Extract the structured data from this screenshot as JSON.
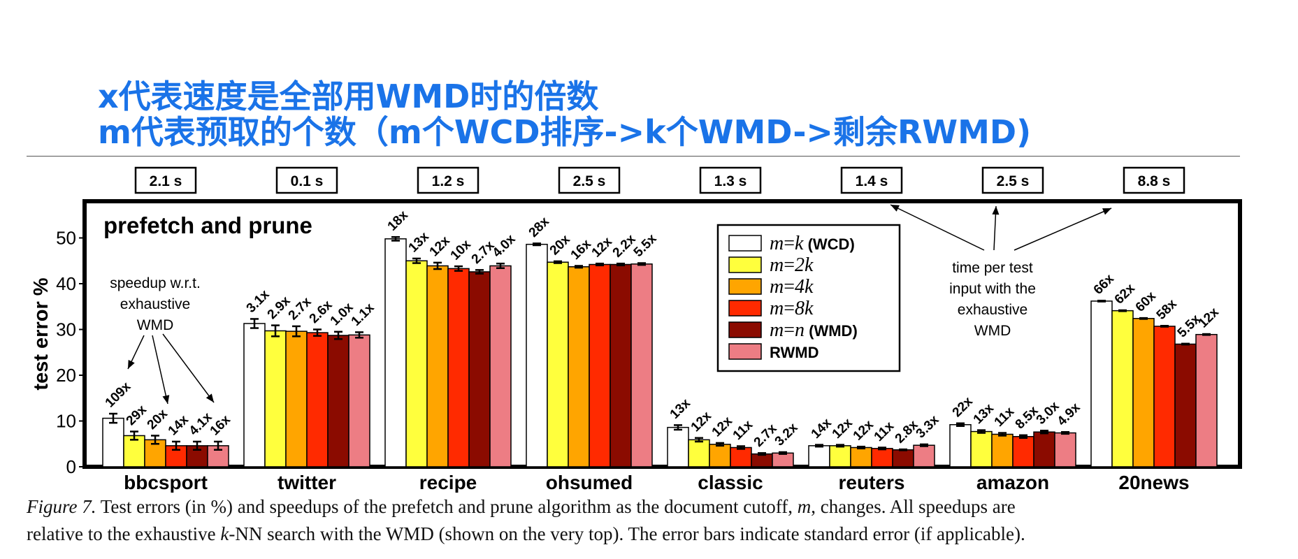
{
  "heading": {
    "line1": "x代表速度是全部用WMD时的倍数",
    "line2": "m代表预取的个数（m个WCD排序->k个WMD->剩余RWMD)"
  },
  "caption": {
    "fig_label": "Figure 7.",
    "line1_a": " Test errors (in %) and speedups of the prefetch and prune algorithm as the document cutoff, ",
    "m": "m",
    "line1_b": ", changes.  All speedups are",
    "line2_a": "relative to the exhaustive ",
    "k": "k",
    "line2_b": "-NN search with the WMD (shown on the very top). The error bars indicate standard error (if applicable)."
  },
  "chart_data": {
    "type": "bar",
    "title": "prefetch and prune",
    "ylabel": "test error %",
    "ylim": [
      0,
      55
    ],
    "yticks": [
      0,
      10,
      20,
      30,
      40,
      50
    ],
    "categories": [
      "bbcsport",
      "twitter",
      "recipe",
      "ohsumed",
      "classic",
      "reuters",
      "amazon",
      "20news"
    ],
    "wmd_times": [
      "2.1 s",
      "0.1 s",
      "1.2 s",
      "2.5 s",
      "1.3 s",
      "1.4 s",
      "2.5 s",
      "8.8 s"
    ],
    "series": [
      {
        "name": "m=k (WCD)",
        "color": "#ffffff",
        "values": [
          10.6,
          31.3,
          49.8,
          48.6,
          8.6,
          4.6,
          9.2,
          36.2
        ],
        "errors": [
          1.0,
          1.0,
          0.4,
          0.2,
          0.5,
          0.2,
          0.3,
          0.1
        ],
        "speedups": [
          "109x",
          "3.1x",
          "18x",
          "28x",
          "13x",
          "14x",
          "22x",
          "66x"
        ]
      },
      {
        "name": "m=2k",
        "color": "#ffff3d",
        "values": [
          6.8,
          29.7,
          45.0,
          44.7,
          5.9,
          4.6,
          7.7,
          34.1
        ],
        "errors": [
          0.9,
          1.2,
          0.5,
          0.2,
          0.4,
          0.2,
          0.3,
          0.1
        ],
        "speedups": [
          "29x",
          "2.9x",
          "13x",
          "20x",
          "12x",
          "12x",
          "13x",
          "62x"
        ]
      },
      {
        "name": "m=4k",
        "color": "#ffa500",
        "values": [
          5.9,
          29.6,
          43.9,
          43.7,
          4.9,
          4.2,
          7.1,
          32.4
        ],
        "errors": [
          0.9,
          1.1,
          0.7,
          0.2,
          0.3,
          0.2,
          0.3,
          0.1
        ],
        "speedups": [
          "20x",
          "2.7x",
          "12x",
          "16x",
          "12x",
          "12x",
          "11x",
          "60x"
        ]
      },
      {
        "name": "m=8k",
        "color": "#ff2a00",
        "values": [
          4.6,
          29.3,
          43.3,
          44.2,
          4.2,
          4.0,
          6.6,
          30.7
        ],
        "errors": [
          0.9,
          0.7,
          0.5,
          0.2,
          0.3,
          0.2,
          0.3,
          0.1
        ],
        "speedups": [
          "14x",
          "2.6x",
          "10x",
          "12x",
          "11x",
          "11x",
          "8.5x",
          "58x"
        ]
      },
      {
        "name": "m=n (WMD)",
        "color": "#8b0b00",
        "values": [
          4.6,
          28.7,
          42.6,
          44.2,
          2.8,
          3.7,
          7.6,
          26.8
        ],
        "errors": [
          0.9,
          0.8,
          0.4,
          0.2,
          0.2,
          0.1,
          0.3,
          0.1
        ],
        "speedups": [
          "4.1x",
          "1.0x",
          "2.7x",
          "2.2x",
          "2.7x",
          "2.8x",
          "3.0x",
          "5.5x"
        ]
      },
      {
        "name": "RWMD",
        "color": "#ed7d84",
        "values": [
          4.6,
          28.8,
          43.9,
          44.3,
          3.0,
          4.7,
          7.4,
          28.9
        ],
        "errors": [
          0.9,
          0.6,
          0.5,
          0.2,
          0.2,
          0.2,
          0.2,
          0.1
        ],
        "speedups": [
          "16x",
          "1.1x",
          "4.0x",
          "5.5x",
          "3.2x",
          "3.3x",
          "4.9x",
          "12x"
        ]
      }
    ],
    "legend_entries": [
      {
        "m_label": "m",
        "op": "=",
        "rhs": "k",
        "suffix": " (WCD)"
      },
      {
        "m_label": "m",
        "op": "=",
        "rhs": "2k",
        "suffix": ""
      },
      {
        "m_label": "m",
        "op": "=",
        "rhs": "4k",
        "suffix": ""
      },
      {
        "m_label": "m",
        "op": "=",
        "rhs": "8k",
        "suffix": ""
      },
      {
        "m_label": "m",
        "op": "=",
        "rhs": "n",
        "suffix": " (WMD)"
      },
      {
        "m_label": "",
        "op": "",
        "rhs": "",
        "suffix": "RWMD"
      }
    ],
    "legend_position": "top-center",
    "annotations": {
      "speedup_note": [
        "speedup w.r.t.",
        "exhaustive",
        "WMD"
      ],
      "time_note": [
        "time per test",
        "input with the",
        "exhaustive",
        "WMD"
      ]
    }
  }
}
